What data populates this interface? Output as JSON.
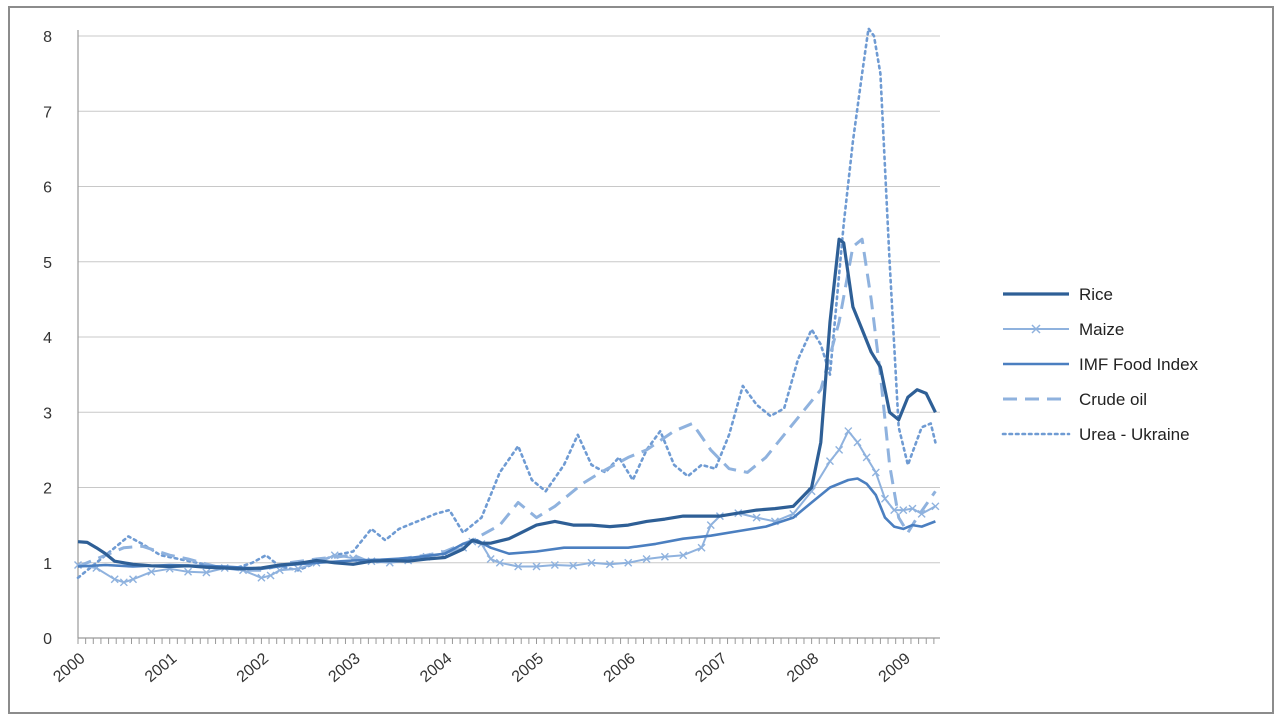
{
  "chart_data": {
    "type": "line",
    "title": "",
    "xlabel": "",
    "ylabel": "",
    "ylim": [
      0,
      8
    ],
    "xlim": [
      2000.0,
      2009.4
    ],
    "yticks": [
      "0",
      "1",
      "2",
      "3",
      "4",
      "5",
      "6",
      "7",
      "8"
    ],
    "xticks": [
      "2000",
      "2001",
      "2002",
      "2003",
      "2004",
      "2005",
      "2006",
      "2007",
      "2008",
      "2009"
    ],
    "grid": "horizontal",
    "legend_position": "right",
    "series": [
      {
        "name": "Rice",
        "color": "#2e5f96",
        "style": "solid-thick",
        "points": [
          [
            2000.0,
            1.28
          ],
          [
            2000.1,
            1.27
          ],
          [
            2000.2,
            1.2
          ],
          [
            2000.3,
            1.12
          ],
          [
            2000.4,
            1.02
          ],
          [
            2000.6,
            0.98
          ],
          [
            2000.8,
            0.96
          ],
          [
            2001.0,
            0.95
          ],
          [
            2001.2,
            0.96
          ],
          [
            2001.4,
            0.94
          ],
          [
            2001.6,
            0.93
          ],
          [
            2001.8,
            0.92
          ],
          [
            2002.0,
            0.93
          ],
          [
            2002.2,
            0.97
          ],
          [
            2002.4,
            0.99
          ],
          [
            2002.6,
            1.03
          ],
          [
            2002.8,
            1.0
          ],
          [
            2003.0,
            0.98
          ],
          [
            2003.2,
            1.02
          ],
          [
            2003.4,
            1.03
          ],
          [
            2003.6,
            1.02
          ],
          [
            2003.8,
            1.05
          ],
          [
            2004.0,
            1.07
          ],
          [
            2004.2,
            1.18
          ],
          [
            2004.3,
            1.3
          ],
          [
            2004.4,
            1.26
          ],
          [
            2004.5,
            1.26
          ],
          [
            2004.6,
            1.29
          ],
          [
            2004.7,
            1.32
          ],
          [
            2004.8,
            1.38
          ],
          [
            2005.0,
            1.5
          ],
          [
            2005.2,
            1.55
          ],
          [
            2005.4,
            1.5
          ],
          [
            2005.6,
            1.5
          ],
          [
            2005.8,
            1.48
          ],
          [
            2006.0,
            1.5
          ],
          [
            2006.2,
            1.55
          ],
          [
            2006.4,
            1.58
          ],
          [
            2006.6,
            1.62
          ],
          [
            2006.8,
            1.62
          ],
          [
            2007.0,
            1.62
          ],
          [
            2007.2,
            1.66
          ],
          [
            2007.4,
            1.7
          ],
          [
            2007.6,
            1.72
          ],
          [
            2007.8,
            1.75
          ],
          [
            2008.0,
            2.0
          ],
          [
            2008.1,
            2.6
          ],
          [
            2008.2,
            4.2
          ],
          [
            2008.3,
            5.3
          ],
          [
            2008.35,
            5.25
          ],
          [
            2008.45,
            4.4
          ],
          [
            2008.55,
            4.1
          ],
          [
            2008.65,
            3.8
          ],
          [
            2008.75,
            3.6
          ],
          [
            2008.85,
            3.0
          ],
          [
            2008.95,
            2.9
          ],
          [
            2009.05,
            3.2
          ],
          [
            2009.15,
            3.3
          ],
          [
            2009.25,
            3.25
          ],
          [
            2009.35,
            3.0
          ]
        ]
      },
      {
        "name": "Maize",
        "color": "#8fb2de",
        "style": "solid-x",
        "points": [
          [
            2000.0,
            0.97
          ],
          [
            2000.2,
            0.93
          ],
          [
            2000.4,
            0.78
          ],
          [
            2000.5,
            0.74
          ],
          [
            2000.6,
            0.78
          ],
          [
            2000.8,
            0.88
          ],
          [
            2001.0,
            0.92
          ],
          [
            2001.2,
            0.88
          ],
          [
            2001.4,
            0.87
          ],
          [
            2001.6,
            0.93
          ],
          [
            2001.8,
            0.9
          ],
          [
            2002.0,
            0.8
          ],
          [
            2002.1,
            0.83
          ],
          [
            2002.2,
            0.9
          ],
          [
            2002.4,
            0.92
          ],
          [
            2002.6,
            1.0
          ],
          [
            2002.8,
            1.1
          ],
          [
            2003.0,
            1.06
          ],
          [
            2003.2,
            1.02
          ],
          [
            2003.4,
            1.0
          ],
          [
            2003.6,
            1.03
          ],
          [
            2003.8,
            1.08
          ],
          [
            2004.0,
            1.12
          ],
          [
            2004.2,
            1.2
          ],
          [
            2004.3,
            1.28
          ],
          [
            2004.4,
            1.25
          ],
          [
            2004.5,
            1.05
          ],
          [
            2004.6,
            1.0
          ],
          [
            2004.8,
            0.95
          ],
          [
            2005.0,
            0.95
          ],
          [
            2005.2,
            0.97
          ],
          [
            2005.4,
            0.96
          ],
          [
            2005.6,
            1.0
          ],
          [
            2005.8,
            0.98
          ],
          [
            2006.0,
            1.0
          ],
          [
            2006.2,
            1.05
          ],
          [
            2006.4,
            1.08
          ],
          [
            2006.6,
            1.1
          ],
          [
            2006.8,
            1.2
          ],
          [
            2006.9,
            1.5
          ],
          [
            2007.0,
            1.62
          ],
          [
            2007.2,
            1.66
          ],
          [
            2007.4,
            1.6
          ],
          [
            2007.6,
            1.55
          ],
          [
            2007.8,
            1.65
          ],
          [
            2008.0,
            1.95
          ],
          [
            2008.2,
            2.35
          ],
          [
            2008.3,
            2.5
          ],
          [
            2008.4,
            2.75
          ],
          [
            2008.5,
            2.6
          ],
          [
            2008.6,
            2.4
          ],
          [
            2008.7,
            2.2
          ],
          [
            2008.8,
            1.85
          ],
          [
            2008.9,
            1.7
          ],
          [
            2009.0,
            1.7
          ],
          [
            2009.1,
            1.72
          ],
          [
            2009.2,
            1.65
          ],
          [
            2009.35,
            1.75
          ]
        ]
      },
      {
        "name": "IMF Food Index",
        "color": "#4b7fc0",
        "style": "solid",
        "points": [
          [
            2000.0,
            0.95
          ],
          [
            2000.3,
            0.97
          ],
          [
            2000.6,
            0.95
          ],
          [
            2001.0,
            0.97
          ],
          [
            2001.3,
            0.96
          ],
          [
            2001.6,
            0.95
          ],
          [
            2002.0,
            0.92
          ],
          [
            2002.3,
            0.97
          ],
          [
            2002.6,
            1.0
          ],
          [
            2003.0,
            1.03
          ],
          [
            2003.3,
            1.04
          ],
          [
            2003.6,
            1.06
          ],
          [
            2004.0,
            1.12
          ],
          [
            2004.2,
            1.25
          ],
          [
            2004.35,
            1.3
          ],
          [
            2004.5,
            1.2
          ],
          [
            2004.7,
            1.12
          ],
          [
            2005.0,
            1.15
          ],
          [
            2005.3,
            1.2
          ],
          [
            2005.6,
            1.2
          ],
          [
            2006.0,
            1.2
          ],
          [
            2006.3,
            1.25
          ],
          [
            2006.6,
            1.32
          ],
          [
            2006.9,
            1.36
          ],
          [
            2007.2,
            1.42
          ],
          [
            2007.5,
            1.48
          ],
          [
            2007.8,
            1.6
          ],
          [
            2008.0,
            1.8
          ],
          [
            2008.2,
            2.0
          ],
          [
            2008.4,
            2.1
          ],
          [
            2008.5,
            2.12
          ],
          [
            2008.6,
            2.05
          ],
          [
            2008.7,
            1.9
          ],
          [
            2008.8,
            1.6
          ],
          [
            2008.9,
            1.48
          ],
          [
            2009.0,
            1.45
          ],
          [
            2009.1,
            1.5
          ],
          [
            2009.2,
            1.48
          ],
          [
            2009.35,
            1.55
          ]
        ]
      },
      {
        "name": "Crude oil",
        "color": "#8fb2de",
        "style": "dashed",
        "points": [
          [
            2000.0,
            0.95
          ],
          [
            2000.2,
            1.05
          ],
          [
            2000.5,
            1.2
          ],
          [
            2000.7,
            1.22
          ],
          [
            2001.0,
            1.1
          ],
          [
            2001.2,
            1.05
          ],
          [
            2001.5,
            0.95
          ],
          [
            2001.8,
            0.9
          ],
          [
            2002.0,
            0.9
          ],
          [
            2002.3,
            1.0
          ],
          [
            2002.6,
            1.05
          ],
          [
            2003.0,
            1.1
          ],
          [
            2003.2,
            1.0
          ],
          [
            2003.5,
            1.05
          ],
          [
            2003.8,
            1.1
          ],
          [
            2004.0,
            1.15
          ],
          [
            2004.3,
            1.3
          ],
          [
            2004.6,
            1.5
          ],
          [
            2004.8,
            1.8
          ],
          [
            2005.0,
            1.6
          ],
          [
            2005.2,
            1.75
          ],
          [
            2005.5,
            2.05
          ],
          [
            2005.7,
            2.2
          ],
          [
            2006.0,
            2.4
          ],
          [
            2006.2,
            2.5
          ],
          [
            2006.5,
            2.75
          ],
          [
            2006.7,
            2.85
          ],
          [
            2006.9,
            2.5
          ],
          [
            2007.1,
            2.25
          ],
          [
            2007.3,
            2.2
          ],
          [
            2007.5,
            2.4
          ],
          [
            2007.7,
            2.7
          ],
          [
            2007.9,
            3.0
          ],
          [
            2008.1,
            3.3
          ],
          [
            2008.3,
            4.2
          ],
          [
            2008.45,
            5.2
          ],
          [
            2008.55,
            5.3
          ],
          [
            2008.65,
            4.5
          ],
          [
            2008.75,
            3.5
          ],
          [
            2008.85,
            2.3
          ],
          [
            2008.95,
            1.6
          ],
          [
            2009.05,
            1.4
          ],
          [
            2009.15,
            1.6
          ],
          [
            2009.35,
            1.95
          ]
        ]
      },
      {
        "name": "Urea - Ukraine",
        "color": "#6f9bd3",
        "style": "dotted",
        "points": [
          [
            2000.0,
            0.8
          ],
          [
            2000.2,
            1.0
          ],
          [
            2000.4,
            1.2
          ],
          [
            2000.55,
            1.35
          ],
          [
            2000.7,
            1.25
          ],
          [
            2000.9,
            1.1
          ],
          [
            2001.1,
            1.05
          ],
          [
            2001.3,
            1.0
          ],
          [
            2001.5,
            0.95
          ],
          [
            2001.7,
            0.92
          ],
          [
            2001.9,
            1.0
          ],
          [
            2002.05,
            1.1
          ],
          [
            2002.2,
            0.95
          ],
          [
            2002.4,
            0.9
          ],
          [
            2002.6,
            1.0
          ],
          [
            2002.8,
            1.1
          ],
          [
            2003.0,
            1.15
          ],
          [
            2003.2,
            1.45
          ],
          [
            2003.35,
            1.3
          ],
          [
            2003.5,
            1.45
          ],
          [
            2003.7,
            1.55
          ],
          [
            2003.9,
            1.65
          ],
          [
            2004.05,
            1.7
          ],
          [
            2004.2,
            1.4
          ],
          [
            2004.4,
            1.6
          ],
          [
            2004.6,
            2.2
          ],
          [
            2004.8,
            2.55
          ],
          [
            2004.95,
            2.1
          ],
          [
            2005.1,
            1.95
          ],
          [
            2005.3,
            2.3
          ],
          [
            2005.45,
            2.7
          ],
          [
            2005.6,
            2.3
          ],
          [
            2005.75,
            2.2
          ],
          [
            2005.9,
            2.4
          ],
          [
            2006.05,
            2.1
          ],
          [
            2006.2,
            2.5
          ],
          [
            2006.35,
            2.75
          ],
          [
            2006.5,
            2.3
          ],
          [
            2006.65,
            2.15
          ],
          [
            2006.8,
            2.3
          ],
          [
            2006.95,
            2.25
          ],
          [
            2007.1,
            2.7
          ],
          [
            2007.25,
            3.35
          ],
          [
            2007.4,
            3.1
          ],
          [
            2007.55,
            2.95
          ],
          [
            2007.7,
            3.05
          ],
          [
            2007.85,
            3.7
          ],
          [
            2008.0,
            4.1
          ],
          [
            2008.1,
            3.9
          ],
          [
            2008.2,
            3.5
          ],
          [
            2008.35,
            5.5
          ],
          [
            2008.45,
            6.6
          ],
          [
            2008.55,
            7.5
          ],
          [
            2008.62,
            8.1
          ],
          [
            2008.68,
            8.0
          ],
          [
            2008.75,
            7.5
          ],
          [
            2008.85,
            5.0
          ],
          [
            2008.95,
            2.8
          ],
          [
            2009.05,
            2.3
          ],
          [
            2009.2,
            2.8
          ],
          [
            2009.3,
            2.85
          ],
          [
            2009.35,
            2.6
          ]
        ]
      }
    ]
  }
}
